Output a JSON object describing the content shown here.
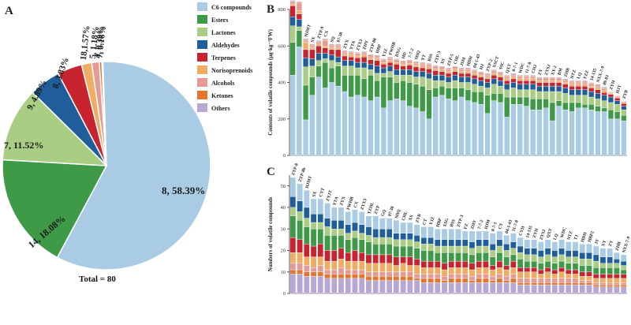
{
  "colors": {
    "C6 compounds": "#a9cbe3",
    "Esters": "#3f9a48",
    "Lactones": "#a9cd82",
    "Aldehydes": "#1f5e9a",
    "Terpenes": "#c8242f",
    "Norisoprenoids": "#efad64",
    "Alcohols": "#e69a96",
    "Ketones": "#e5742c",
    "Others": "#b6a7d4"
  },
  "chart_data": [
    {
      "panel": "A",
      "type": "pie",
      "total_label": "Total = 80",
      "slices": [
        {
          "name": "C6 compounds",
          "label": "8, 58.39%",
          "value": 58.39
        },
        {
          "name": "Esters",
          "label": "14, 18.08%",
          "value": 18.08
        },
        {
          "name": "Lactones",
          "label": "7, 11.52%",
          "value": 11.52
        },
        {
          "name": "Aldehydes",
          "label": "9, 4.89%",
          "value": 4.89
        },
        {
          "name": "Terpenes",
          "label": "8, 3.83%",
          "value": 3.83
        },
        {
          "name": "Norisoprenoids",
          "label": "18,1.57%",
          "value": 1.57
        },
        {
          "name": "Alcohols",
          "label": "5, 1.18%",
          "value": 1.18
        },
        {
          "name": "Ketones",
          "label": "4, 0.39%",
          "value": 0.39
        },
        {
          "name": "Others",
          "label": "7, 0.16%",
          "value": 0.16
        }
      ],
      "legend": [
        "C6 compounds",
        "Esters",
        "Lactones",
        "Aldehydes",
        "Terpenes",
        "Norisoprenoids",
        "Alcohols",
        "Ketones",
        "Others"
      ]
    },
    {
      "panel": "B",
      "type": "bar",
      "stacked": true,
      "ylabel": "Contents of volatile compounds (μg·kg⁻¹FW)",
      "ylim": [
        0,
        800
      ],
      "yticks": [
        0,
        200,
        400,
        600,
        800
      ],
      "categories": [
        "ZYJT",
        "CYT",
        "HJMT",
        "SX",
        "ZYP-9",
        "CX",
        "SQ",
        "07-38",
        "ZYX",
        "YTA",
        "ZYX3",
        "ZHY",
        "ZYP-80",
        "HBP",
        "YJZ",
        "FWHB",
        "DXG",
        "HD",
        "7-7-2",
        "SHQ",
        "YT",
        "BSS",
        "ZYP-3",
        "XS",
        "ZYP-5",
        "CHL",
        "JSM",
        "HDH",
        "04-1-43",
        "HJ",
        "ZYP-2",
        "XSCT",
        "SSC",
        "QXT",
        "8-7-1",
        "WDC",
        "11-7-8",
        "CHJ",
        "ZY",
        "ZYSJ",
        "XY-2",
        "BM",
        "ZHB",
        "NTZ",
        "LQ",
        "FZZ",
        "14-135",
        "NXX-7-9",
        "09-83",
        "ZYH",
        "HJT",
        "ZYB"
      ],
      "series": [
        {
          "name": "C6 compounds",
          "values": [
            440,
            595,
            195,
            330,
            430,
            370,
            400,
            380,
            350,
            320,
            330,
            320,
            300,
            320,
            260,
            300,
            310,
            300,
            270,
            260,
            240,
            200,
            320,
            330,
            310,
            300,
            320,
            300,
            290,
            280,
            230,
            300,
            290,
            210,
            280,
            280,
            270,
            250,
            250,
            260,
            190,
            270,
            250,
            240,
            260,
            260,
            250,
            240,
            240,
            200,
            200,
            190
          ]
        },
        {
          "name": "Esters",
          "values": [
            180,
            90,
            190,
            100,
            60,
            140,
            80,
            110,
            90,
            120,
            110,
            100,
            140,
            90,
            170,
            130,
            90,
            110,
            130,
            130,
            140,
            160,
            50,
            50,
            60,
            70,
            50,
            60,
            60,
            70,
            100,
            40,
            50,
            110,
            40,
            40,
            50,
            60,
            60,
            50,
            100,
            30,
            40,
            50,
            30,
            20,
            30,
            30,
            20,
            50,
            40,
            30
          ]
        },
        {
          "name": "Lactones",
          "values": [
            90,
            20,
            100,
            60,
            30,
            20,
            40,
            20,
            50,
            50,
            40,
            60,
            30,
            40,
            20,
            30,
            40,
            30,
            40,
            40,
            50,
            60,
            40,
            30,
            30,
            40,
            30,
            40,
            40,
            30,
            40,
            50,
            40,
            40,
            50,
            40,
            40,
            50,
            40,
            40,
            60,
            50,
            50,
            40,
            40,
            50,
            40,
            40,
            40,
            40,
            40,
            30
          ]
        },
        {
          "name": "Aldehydes",
          "values": [
            50,
            40,
            50,
            40,
            40,
            30,
            30,
            30,
            30,
            30,
            30,
            30,
            30,
            40,
            30,
            30,
            30,
            30,
            30,
            30,
            30,
            30,
            30,
            30,
            30,
            30,
            30,
            30,
            30,
            30,
            30,
            30,
            30,
            30,
            30,
            30,
            30,
            30,
            30,
            30,
            30,
            30,
            30,
            30,
            30,
            30,
            30,
            30,
            30,
            30,
            20,
            20
          ]
        },
        {
          "name": "Terpenes",
          "values": [
            60,
            30,
            45,
            50,
            40,
            30,
            30,
            40,
            25,
            20,
            25,
            30,
            25,
            30,
            20,
            20,
            30,
            20,
            25,
            25,
            20,
            25,
            25,
            20,
            20,
            20,
            20,
            20,
            20,
            20,
            20,
            20,
            20,
            20,
            20,
            20,
            20,
            20,
            20,
            20,
            20,
            20,
            20,
            20,
            20,
            20,
            20,
            20,
            15,
            15,
            15,
            15
          ]
        },
        {
          "name": "Norisoprenoids",
          "values": [
            10,
            20,
            40,
            10,
            10,
            10,
            10,
            10,
            10,
            10,
            10,
            10,
            10,
            10,
            10,
            10,
            10,
            10,
            10,
            10,
            10,
            10,
            10,
            10,
            10,
            10,
            10,
            10,
            10,
            10,
            10,
            10,
            10,
            10,
            10,
            10,
            10,
            10,
            10,
            10,
            10,
            10,
            10,
            10,
            10,
            10,
            10,
            10,
            10,
            5,
            5,
            5
          ]
        },
        {
          "name": "Alcohols",
          "values": [
            10,
            40,
            10,
            10,
            10,
            30,
            10,
            10,
            10,
            10,
            10,
            10,
            10,
            10,
            10,
            10,
            10,
            10,
            10,
            10,
            10,
            10,
            10,
            10,
            10,
            10,
            10,
            10,
            10,
            10,
            10,
            10,
            10,
            10,
            10,
            10,
            10,
            10,
            10,
            10,
            10,
            10,
            10,
            10,
            10,
            10,
            10,
            10,
            10,
            5,
            5,
            5
          ]
        },
        {
          "name": "Ketones",
          "values": [
            5,
            5,
            5,
            5,
            5,
            5,
            5,
            5,
            5,
            5,
            5,
            5,
            5,
            5,
            5,
            5,
            5,
            5,
            5,
            5,
            5,
            5,
            5,
            5,
            5,
            5,
            5,
            5,
            5,
            5,
            5,
            5,
            5,
            5,
            5,
            5,
            5,
            5,
            5,
            5,
            5,
            5,
            5,
            5,
            5,
            5,
            5,
            5,
            5,
            3,
            3,
            3
          ]
        },
        {
          "name": "Others",
          "values": [
            5,
            5,
            5,
            5,
            5,
            5,
            5,
            5,
            5,
            5,
            5,
            5,
            5,
            5,
            5,
            5,
            5,
            5,
            5,
            5,
            5,
            5,
            5,
            5,
            5,
            5,
            5,
            5,
            5,
            5,
            5,
            5,
            5,
            5,
            5,
            5,
            5,
            5,
            5,
            5,
            5,
            5,
            5,
            5,
            5,
            5,
            5,
            5,
            5,
            2,
            2,
            2
          ]
        }
      ]
    },
    {
      "panel": "C",
      "type": "bar",
      "stacked": true,
      "ylabel": "Numbers of volatile compounds",
      "ylim": [
        0,
        55
      ],
      "yticks": [
        0,
        10,
        20,
        30,
        40,
        50
      ],
      "categories": [
        "ZYP-8",
        "ZYP-8b",
        "HJMT",
        "SX",
        "CYT",
        "ZYJT",
        "YTA",
        "ZYX",
        "FWHB",
        "CX",
        "ZYX3",
        "YZHL",
        "ZYP",
        "GQ",
        "07-38",
        "SHQ",
        "CHL",
        "XS",
        "ZYB",
        "CT",
        "YJZ",
        "HBP",
        "XSG",
        "BSS",
        "ZYP-3",
        "FZ",
        "ZHY",
        "7-7-2",
        "HJM",
        "8-7-1",
        "CY",
        "04-1-43",
        "11-7-8",
        "CYH",
        "14-135",
        "ZYH",
        "ZYSJ",
        "QXT",
        "LQ",
        "WDC",
        "NTZ",
        "TJ",
        "HDH",
        "HBP2",
        "JY",
        "XY",
        "ZY",
        "ZHB",
        "NXX-7-9"
      ],
      "series": [
        {
          "name": "Others",
          "values": [
            9,
            9,
            8,
            8,
            8,
            7,
            7,
            7,
            7,
            7,
            7,
            6,
            6,
            6,
            6,
            6,
            6,
            6,
            6,
            5,
            5,
            5,
            5,
            5,
            5,
            5,
            5,
            5,
            5,
            5,
            5,
            5,
            5,
            4,
            4,
            4,
            4,
            4,
            4,
            4,
            4,
            4,
            4,
            4,
            3,
            3,
            3,
            3,
            3
          ]
        },
        {
          "name": "Ketones",
          "values": [
            2,
            2,
            2,
            2,
            2,
            2,
            2,
            2,
            2,
            2,
            2,
            2,
            2,
            2,
            2,
            2,
            2,
            2,
            1,
            2,
            2,
            2,
            1,
            2,
            2,
            2,
            1,
            2,
            2,
            1,
            2,
            1,
            2,
            1,
            1,
            1,
            1,
            1,
            1,
            1,
            1,
            1,
            1,
            1,
            1,
            1,
            1,
            1,
            1
          ]
        },
        {
          "name": "Alcohols",
          "values": [
            3,
            3,
            3,
            2,
            3,
            2,
            2,
            3,
            2,
            2,
            2,
            2,
            2,
            2,
            2,
            2,
            2,
            2,
            2,
            2,
            2,
            2,
            2,
            2,
            2,
            2,
            2,
            2,
            2,
            2,
            2,
            2,
            2,
            2,
            2,
            2,
            2,
            2,
            2,
            2,
            2,
            2,
            1,
            1,
            1,
            1,
            1,
            1,
            1
          ]
        },
        {
          "name": "Norisoprenoids",
          "values": [
            5,
            5,
            4,
            5,
            4,
            4,
            4,
            4,
            4,
            4,
            4,
            4,
            4,
            4,
            4,
            3,
            4,
            3,
            4,
            3,
            3,
            3,
            3,
            3,
            3,
            3,
            3,
            3,
            3,
            3,
            3,
            3,
            3,
            3,
            3,
            3,
            2,
            3,
            2,
            3,
            2,
            2,
            2,
            2,
            2,
            2,
            2,
            2,
            2
          ]
        },
        {
          "name": "Terpenes",
          "values": [
            7,
            6,
            6,
            5,
            6,
            5,
            5,
            5,
            4,
            5,
            4,
            4,
            4,
            4,
            4,
            4,
            3,
            4,
            3,
            3,
            3,
            3,
            3,
            3,
            3,
            3,
            3,
            3,
            3,
            2,
            3,
            2,
            3,
            2,
            2,
            2,
            2,
            2,
            2,
            2,
            2,
            2,
            2,
            2,
            2,
            2,
            2,
            2,
            2
          ]
        },
        {
          "name": "Esters",
          "values": [
            10,
            9,
            8,
            8,
            7,
            7,
            7,
            6,
            6,
            6,
            6,
            6,
            5,
            5,
            5,
            5,
            5,
            5,
            5,
            5,
            5,
            4,
            5,
            4,
            4,
            4,
            4,
            4,
            4,
            4,
            4,
            4,
            3,
            4,
            3,
            3,
            3,
            3,
            3,
            3,
            3,
            3,
            3,
            3,
            3,
            3,
            3,
            3,
            2
          ]
        },
        {
          "name": "Lactones",
          "values": [
            4,
            4,
            4,
            3,
            3,
            4,
            3,
            3,
            3,
            3,
            3,
            3,
            3,
            3,
            3,
            3,
            3,
            3,
            3,
            3,
            3,
            3,
            3,
            3,
            3,
            3,
            3,
            3,
            3,
            3,
            3,
            3,
            3,
            3,
            3,
            3,
            3,
            3,
            3,
            3,
            3,
            3,
            3,
            3,
            3,
            2,
            2,
            2,
            2
          ]
        },
        {
          "name": "Aldehydes",
          "values": [
            5,
            5,
            5,
            4,
            4,
            4,
            4,
            4,
            4,
            4,
            4,
            4,
            4,
            4,
            4,
            3,
            3,
            3,
            3,
            3,
            3,
            3,
            3,
            3,
            3,
            3,
            3,
            3,
            3,
            3,
            3,
            3,
            3,
            3,
            3,
            3,
            3,
            3,
            3,
            3,
            3,
            3,
            3,
            3,
            3,
            3,
            3,
            2,
            2
          ]
        },
        {
          "name": "C6 compounds",
          "values": [
            9,
            8,
            8,
            7,
            7,
            7,
            6,
            6,
            6,
            6,
            6,
            5,
            6,
            5,
            5,
            6,
            5,
            5,
            5,
            5,
            5,
            5,
            5,
            5,
            5,
            4,
            5,
            4,
            4,
            5,
            4,
            4,
            4,
            4,
            4,
            4,
            4,
            4,
            4,
            4,
            4,
            4,
            4,
            4,
            4,
            4,
            4,
            3,
            3
          ]
        }
      ]
    }
  ]
}
